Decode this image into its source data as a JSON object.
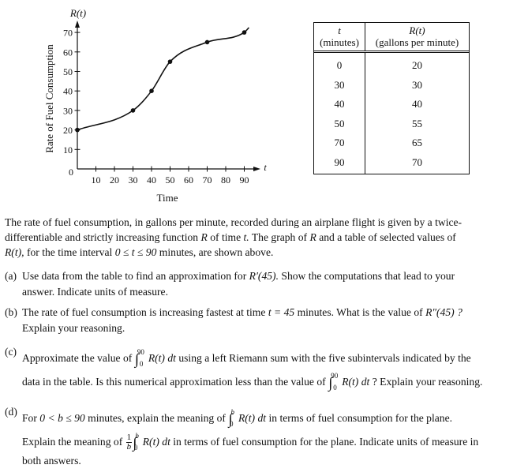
{
  "chart_data": {
    "type": "line",
    "x": [
      0,
      30,
      40,
      50,
      70,
      90
    ],
    "y": [
      20,
      30,
      40,
      55,
      65,
      70
    ],
    "ylabel": "Rate of Fuel Consumption",
    "xlabel": "Time",
    "y_axis_name": "R(t)",
    "x_axis_name": "t",
    "x_ticks": [
      10,
      20,
      30,
      40,
      50,
      60,
      70,
      80,
      90
    ],
    "y_ticks": [
      10,
      20,
      30,
      40,
      50,
      60,
      70
    ],
    "origin_label": "0",
    "xlim": [
      0,
      100
    ],
    "ylim": [
      0,
      75
    ],
    "grid": false
  },
  "table": {
    "col1_var": "t",
    "col1_unit": "(minutes)",
    "col2_var": "R(t)",
    "col2_unit": "(gallons per minute)",
    "t_values": [
      "0",
      "30",
      "40",
      "50",
      "70",
      "90"
    ],
    "r_values": [
      "20",
      "30",
      "40",
      "55",
      "65",
      "70"
    ]
  },
  "intro": {
    "l1": "The rate of fuel consumption, in gallons per minute, recorded during an airplane flight is given by a twice-",
    "l2a": "differentiable and strictly increasing function",
    "l2b": "R",
    "l2c": "of time",
    "l2d": "t.",
    "l2e": "The graph of",
    "l2f": "R",
    "l2g": "and a table of selected values of",
    "l3a": "R(t),",
    "l3b": "for the time interval",
    "l3c": "0 ≤ t ≤ 90",
    "l3d": "minutes, are shown above."
  },
  "parts": {
    "a_label": "(a)",
    "a_l1": "Use data from the table to find an approximation for",
    "a_expr": "R′(45).",
    "a_l1b": "Show the computations that lead to your",
    "a_l2": "answer. Indicate units of measure.",
    "b_label": "(b)",
    "b_l1a": "The rate of fuel consumption is increasing fastest at time",
    "b_l1b": "t = 45",
    "b_l1c": "minutes. What is the value of",
    "b_expr": "R″(45) ?",
    "b_l2": "Explain your reasoning.",
    "c_label": "(c)",
    "c_l1a": "Approximate the value of",
    "c_upper": "90",
    "c_lower": "0",
    "c_integrand": "R(t) dt",
    "c_l1b": "using a left Riemann sum with the five subintervals indicated by the",
    "c_l2a": "data in the table. Is this numerical approximation less than the value of",
    "c_l2b": "? Explain your reasoning.",
    "d_label": "(d)",
    "d_l1a": "For",
    "d_cond": "0 < b ≤ 90",
    "d_l1b": "minutes, explain the meaning of",
    "d_upper": "b",
    "d_lower": "0",
    "d_l1c": "in terms of fuel consumption for the plane.",
    "d_l2a": "Explain the meaning of",
    "d_frac_num": "1",
    "d_frac_den": "b",
    "d_l2b": "in terms of fuel consumption for the plane. Indicate units of measure in",
    "d_l3": "both answers."
  }
}
